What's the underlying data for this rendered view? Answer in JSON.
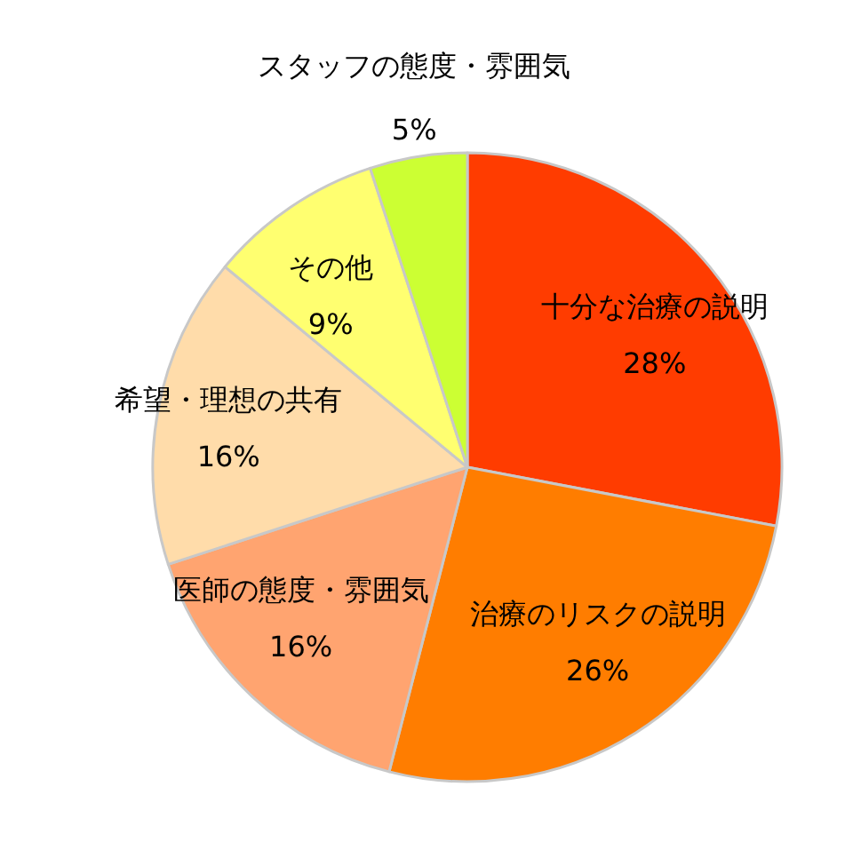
{
  "chart_data": {
    "type": "pie",
    "categories": [
      "十分な治療の説明",
      "治療のリスクの説明",
      "医師の態度・雰囲気",
      "希望・理想の共有",
      "その他",
      "スタッフの態度・雰囲気"
    ],
    "values": [
      28,
      26,
      16,
      16,
      9,
      5
    ],
    "value_labels": [
      "28%",
      "26%",
      "16%",
      "16%",
      "9%",
      "5%"
    ],
    "colors": [
      "#ff3c00",
      "#ff7d00",
      "#ffa470",
      "#ffdcaa",
      "#ffff70",
      "#ccff33"
    ]
  }
}
